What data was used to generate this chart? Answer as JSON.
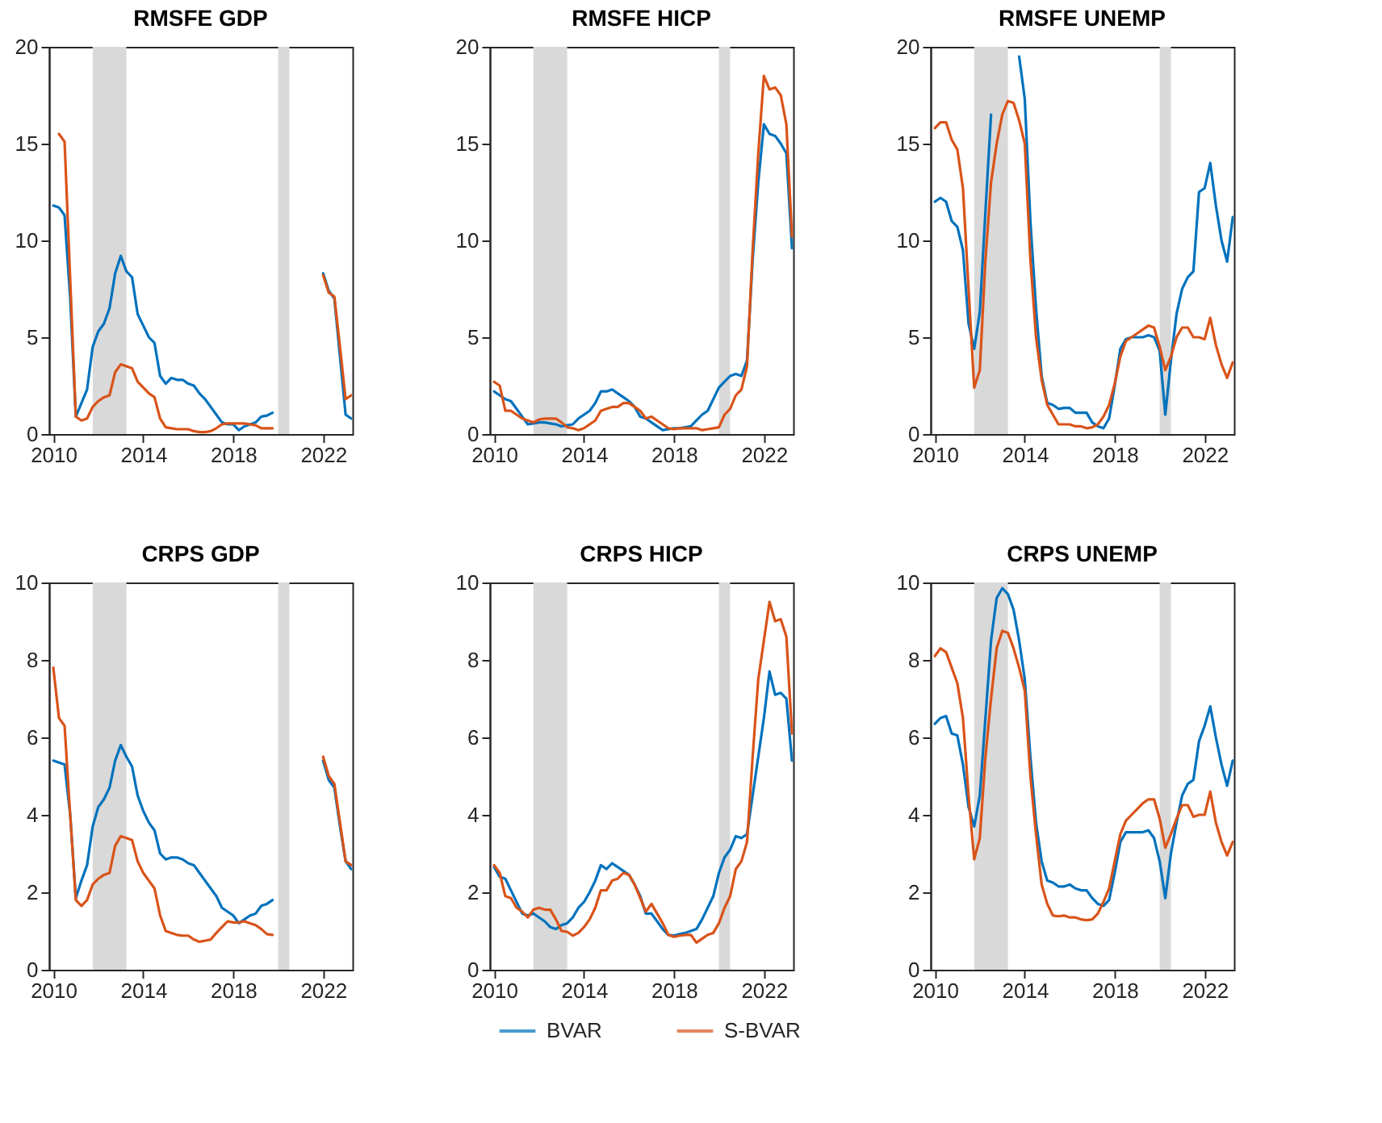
{
  "chart_data": [
    {
      "type": "line",
      "title": "RMSFE GDP",
      "legend": "bottom",
      "xlim": [
        2009.8,
        2023.3
      ],
      "xticks": [
        2010,
        2014,
        2018,
        2022
      ],
      "ylim": [
        0,
        20
      ],
      "yticks": [
        0,
        5,
        10,
        15,
        20
      ],
      "grid": false,
      "line_style": "solid",
      "x": [
        2010,
        2010.25,
        2010.5,
        2010.75,
        2011,
        2011.25,
        2011.5,
        2011.75,
        2012,
        2012.25,
        2012.5,
        2012.75,
        2013,
        2013.25,
        2013.5,
        2013.75,
        2014,
        2014.25,
        2014.5,
        2014.75,
        2015,
        2015.25,
        2015.5,
        2015.75,
        2016,
        2016.25,
        2016.5,
        2016.75,
        2017,
        2017.25,
        2017.5,
        2017.75,
        2018,
        2018.25,
        2018.5,
        2018.75,
        2019,
        2019.25,
        2019.5,
        2019.75,
        2020,
        2020.25,
        2020.5,
        2020.75,
        2021,
        2021.25,
        2021.5,
        2021.75,
        2022,
        2022.25,
        2022.5,
        2022.75,
        2023,
        2023.25
      ],
      "bands": [
        {
          "axis": "x",
          "from": 2011.75,
          "to": 2013.25,
          "color": "#d9d9d9"
        },
        {
          "axis": "x",
          "from": 2020.0,
          "to": 2020.5,
          "color": "#d9d9d9"
        }
      ],
      "series": [
        {
          "name": "BVAR",
          "color": "#0072bd",
          "values": [
            11.8,
            11.7,
            11.3,
            7.0,
            0.9,
            1.6,
            2.3,
            4.5,
            5.3,
            5.7,
            6.5,
            8.3,
            9.2,
            8.4,
            8.1,
            6.2,
            5.6,
            5.0,
            4.7,
            3.0,
            2.6,
            2.9,
            2.8,
            2.8,
            2.6,
            2.5,
            2.1,
            1.8,
            1.4,
            1.0,
            0.6,
            0.5,
            0.5,
            0.2,
            0.4,
            0.5,
            0.6,
            0.9,
            0.95,
            1.1,
            null,
            null,
            null,
            null,
            null,
            null,
            null,
            null,
            8.3,
            7.4,
            7.0,
            4.0,
            1.0,
            0.8
          ]
        },
        {
          "name": "S-BVAR",
          "color": "#d95319",
          "values": [
            null,
            15.5,
            15.1,
            8.0,
            0.9,
            0.7,
            0.8,
            1.4,
            1.7,
            1.9,
            2.0,
            3.2,
            3.6,
            3.5,
            3.4,
            2.7,
            2.4,
            2.1,
            1.9,
            0.8,
            0.35,
            0.3,
            0.25,
            0.25,
            0.25,
            0.15,
            0.1,
            0.1,
            0.15,
            0.3,
            0.5,
            0.55,
            0.55,
            0.55,
            0.55,
            0.5,
            0.45,
            0.3,
            0.3,
            0.3,
            null,
            null,
            null,
            null,
            null,
            null,
            null,
            null,
            8.2,
            7.3,
            7.1,
            4.5,
            1.8,
            2.0
          ]
        }
      ]
    },
    {
      "type": "line",
      "title": "RMSFE HICP",
      "legend": "bottom",
      "xlim": [
        2009.8,
        2023.3
      ],
      "xticks": [
        2010,
        2014,
        2018,
        2022
      ],
      "ylim": [
        0,
        20
      ],
      "yticks": [
        0,
        5,
        10,
        15,
        20
      ],
      "grid": false,
      "line_style": "solid",
      "x": [
        2010,
        2010.25,
        2010.5,
        2010.75,
        2011,
        2011.25,
        2011.5,
        2011.75,
        2012,
        2012.25,
        2012.5,
        2012.75,
        2013,
        2013.25,
        2013.5,
        2013.75,
        2014,
        2014.25,
        2014.5,
        2014.75,
        2015,
        2015.25,
        2015.5,
        2015.75,
        2016,
        2016.25,
        2016.5,
        2016.75,
        2017,
        2017.25,
        2017.5,
        2017.75,
        2018,
        2018.25,
        2018.5,
        2018.75,
        2019,
        2019.25,
        2019.5,
        2019.75,
        2020,
        2020.25,
        2020.5,
        2020.75,
        2021,
        2021.25,
        2021.5,
        2021.75,
        2022,
        2022.25,
        2022.5,
        2022.75,
        2023,
        2023.25
      ],
      "bands": [
        {
          "axis": "x",
          "from": 2011.75,
          "to": 2013.25,
          "color": "#d9d9d9"
        },
        {
          "axis": "x",
          "from": 2020.0,
          "to": 2020.5,
          "color": "#d9d9d9"
        }
      ],
      "series": [
        {
          "name": "BVAR",
          "color": "#0072bd",
          "values": [
            2.2,
            2.0,
            1.8,
            1.7,
            1.3,
            0.9,
            0.5,
            0.55,
            0.6,
            0.6,
            0.55,
            0.5,
            0.4,
            0.45,
            0.5,
            0.8,
            1.0,
            1.2,
            1.6,
            2.2,
            2.2,
            2.3,
            2.1,
            1.9,
            1.7,
            1.4,
            0.9,
            0.8,
            0.6,
            0.4,
            0.2,
            0.25,
            0.3,
            0.3,
            0.35,
            0.4,
            0.7,
            1.0,
            1.2,
            1.8,
            2.4,
            2.7,
            3.0,
            3.1,
            3.0,
            3.8,
            9.0,
            13.0,
            16.0,
            15.5,
            15.4,
            15.0,
            14.5,
            9.6
          ]
        },
        {
          "name": "S-BVAR",
          "color": "#d95319",
          "values": [
            2.7,
            2.5,
            1.2,
            1.2,
            1.0,
            0.8,
            0.7,
            0.6,
            0.75,
            0.8,
            0.8,
            0.8,
            0.6,
            0.35,
            0.3,
            0.2,
            0.3,
            0.5,
            0.7,
            1.2,
            1.3,
            1.4,
            1.4,
            1.6,
            1.6,
            1.4,
            1.2,
            0.8,
            0.9,
            0.7,
            0.5,
            0.3,
            0.25,
            0.3,
            0.3,
            0.3,
            0.3,
            0.2,
            0.25,
            0.3,
            0.35,
            1.0,
            1.3,
            2.0,
            2.3,
            3.5,
            9.5,
            14.5,
            18.5,
            17.8,
            17.9,
            17.5,
            16.0,
            10.2
          ]
        }
      ]
    },
    {
      "type": "line",
      "title": "RMSFE UNEMP",
      "legend": "bottom",
      "xlim": [
        2009.8,
        2023.3
      ],
      "xticks": [
        2010,
        2014,
        2018,
        2022
      ],
      "ylim": [
        0,
        20
      ],
      "yticks": [
        0,
        5,
        10,
        15,
        20
      ],
      "grid": false,
      "line_style": "solid",
      "x": [
        2010,
        2010.25,
        2010.5,
        2010.75,
        2011,
        2011.25,
        2011.5,
        2011.75,
        2012,
        2012.25,
        2012.5,
        2012.75,
        2013,
        2013.25,
        2013.5,
        2013.75,
        2014,
        2014.25,
        2014.5,
        2014.75,
        2015,
        2015.25,
        2015.5,
        2015.75,
        2016,
        2016.25,
        2016.5,
        2016.75,
        2017,
        2017.25,
        2017.5,
        2017.75,
        2018,
        2018.25,
        2018.5,
        2018.75,
        2019,
        2019.25,
        2019.5,
        2019.75,
        2020,
        2020.25,
        2020.5,
        2020.75,
        2021,
        2021.25,
        2021.5,
        2021.75,
        2022,
        2022.25,
        2022.5,
        2022.75,
        2023,
        2023.25
      ],
      "bands": [
        {
          "axis": "x",
          "from": 2011.75,
          "to": 2013.25,
          "color": "#d9d9d9"
        },
        {
          "axis": "x",
          "from": 2020.0,
          "to": 2020.5,
          "color": "#d9d9d9"
        }
      ],
      "series": [
        {
          "name": "BVAR",
          "color": "#0072bd",
          "values": [
            12.0,
            12.2,
            12.0,
            11.0,
            10.7,
            9.5,
            5.7,
            4.4,
            6.3,
            11.5,
            16.5,
            null,
            null,
            null,
            null,
            19.5,
            17.3,
            11.0,
            6.5,
            3.0,
            1.6,
            1.5,
            1.3,
            1.35,
            1.35,
            1.1,
            1.1,
            1.1,
            0.6,
            0.4,
            0.3,
            0.8,
            2.5,
            4.4,
            4.9,
            5.0,
            5.0,
            5.0,
            5.1,
            5.0,
            4.3,
            1.0,
            3.8,
            6.2,
            7.5,
            8.1,
            8.4,
            12.5,
            12.7,
            14.0,
            11.8,
            10.0,
            8.9,
            11.2
          ]
        },
        {
          "name": "S-BVAR",
          "color": "#d95319",
          "values": [
            15.8,
            16.1,
            16.1,
            15.2,
            14.7,
            12.7,
            7.5,
            2.4,
            3.3,
            9.0,
            13.0,
            15.0,
            16.5,
            17.2,
            17.1,
            16.2,
            15.0,
            9.0,
            5.0,
            2.8,
            1.5,
            1.0,
            0.5,
            0.5,
            0.5,
            0.4,
            0.4,
            0.3,
            0.35,
            0.5,
            0.9,
            1.5,
            2.6,
            4.0,
            4.8,
            5.0,
            5.2,
            5.4,
            5.6,
            5.5,
            4.5,
            3.3,
            4.0,
            5.0,
            5.5,
            5.5,
            5.0,
            5.0,
            4.9,
            6.0,
            4.6,
            3.6,
            2.9,
            3.7
          ]
        }
      ]
    },
    {
      "type": "line",
      "title": "CRPS GDP",
      "legend": "bottom",
      "xlim": [
        2009.8,
        2023.3
      ],
      "xticks": [
        2010,
        2014,
        2018,
        2022
      ],
      "ylim": [
        0,
        10
      ],
      "yticks": [
        0,
        2,
        4,
        6,
        8,
        10
      ],
      "grid": false,
      "line_style": "solid",
      "x": [
        2010,
        2010.25,
        2010.5,
        2010.75,
        2011,
        2011.25,
        2011.5,
        2011.75,
        2012,
        2012.25,
        2012.5,
        2012.75,
        2013,
        2013.25,
        2013.5,
        2013.75,
        2014,
        2014.25,
        2014.5,
        2014.75,
        2015,
        2015.25,
        2015.5,
        2015.75,
        2016,
        2016.25,
        2016.5,
        2016.75,
        2017,
        2017.25,
        2017.5,
        2017.75,
        2018,
        2018.25,
        2018.5,
        2018.75,
        2019,
        2019.25,
        2019.5,
        2019.75,
        2020,
        2020.25,
        2020.5,
        2020.75,
        2021,
        2021.25,
        2021.5,
        2021.75,
        2022,
        2022.25,
        2022.5,
        2022.75,
        2023,
        2023.25
      ],
      "bands": [
        {
          "axis": "x",
          "from": 2011.75,
          "to": 2013.25,
          "color": "#d9d9d9"
        },
        {
          "axis": "x",
          "from": 2020.0,
          "to": 2020.5,
          "color": "#d9d9d9"
        }
      ],
      "series": [
        {
          "name": "BVAR",
          "color": "#0072bd",
          "values": [
            5.4,
            5.35,
            5.3,
            4.0,
            1.85,
            2.3,
            2.7,
            3.7,
            4.2,
            4.4,
            4.7,
            5.4,
            5.8,
            5.5,
            5.25,
            4.5,
            4.1,
            3.8,
            3.6,
            3.0,
            2.85,
            2.9,
            2.9,
            2.85,
            2.75,
            2.7,
            2.5,
            2.3,
            2.1,
            1.9,
            1.6,
            1.5,
            1.4,
            1.2,
            1.3,
            1.4,
            1.45,
            1.65,
            1.7,
            1.8,
            null,
            null,
            null,
            null,
            null,
            null,
            null,
            null,
            5.4,
            4.9,
            4.7,
            3.7,
            2.8,
            2.6
          ]
        },
        {
          "name": "S-BVAR",
          "color": "#d95319",
          "values": [
            7.8,
            6.5,
            6.3,
            4.0,
            1.8,
            1.65,
            1.8,
            2.2,
            2.35,
            2.45,
            2.5,
            3.2,
            3.45,
            3.4,
            3.35,
            2.8,
            2.5,
            2.3,
            2.1,
            1.4,
            1.0,
            0.95,
            0.9,
            0.88,
            0.88,
            0.78,
            0.72,
            0.75,
            0.78,
            0.95,
            1.1,
            1.25,
            1.22,
            1.22,
            1.25,
            1.2,
            1.15,
            1.05,
            0.92,
            0.9,
            null,
            null,
            null,
            null,
            null,
            null,
            null,
            null,
            5.5,
            5.0,
            4.8,
            3.8,
            2.8,
            2.7
          ]
        }
      ]
    },
    {
      "type": "line",
      "title": "CRPS HICP",
      "xlim": [
        2009.8,
        2023.3
      ],
      "xticks": [
        2010,
        2014,
        2018,
        2022
      ],
      "ylim": [
        0,
        10
      ],
      "yticks": [
        0,
        2,
        4,
        6,
        8,
        10
      ],
      "grid": false,
      "line_style": "solid",
      "legend": "bottom",
      "x": [
        2010,
        2010.25,
        2010.5,
        2010.75,
        2011,
        2011.25,
        2011.5,
        2011.75,
        2012,
        2012.25,
        2012.5,
        2012.75,
        2013,
        2013.25,
        2013.5,
        2013.75,
        2014,
        2014.25,
        2014.5,
        2014.75,
        2015,
        2015.25,
        2015.5,
        2015.75,
        2016,
        2016.25,
        2016.5,
        2016.75,
        2017,
        2017.25,
        2017.5,
        2017.75,
        2018,
        2018.25,
        2018.5,
        2018.75,
        2019,
        2019.25,
        2019.5,
        2019.75,
        2020,
        2020.25,
        2020.5,
        2020.75,
        2021,
        2021.25,
        2021.5,
        2021.75,
        2022,
        2022.25,
        2022.5,
        2022.75,
        2023,
        2023.25
      ],
      "bands": [
        {
          "axis": "x",
          "from": 2011.75,
          "to": 2013.25,
          "color": "#d9d9d9"
        },
        {
          "axis": "x",
          "from": 2020.0,
          "to": 2020.5,
          "color": "#d9d9d9"
        }
      ],
      "series": [
        {
          "name": "BVAR",
          "color": "#0072bd",
          "values": [
            2.65,
            2.4,
            2.35,
            2.05,
            1.75,
            1.45,
            1.4,
            1.45,
            1.35,
            1.25,
            1.1,
            1.05,
            1.15,
            1.2,
            1.35,
            1.6,
            1.75,
            2.0,
            2.3,
            2.7,
            2.6,
            2.75,
            2.65,
            2.55,
            2.45,
            2.2,
            1.9,
            1.45,
            1.45,
            1.25,
            1.05,
            0.9,
            0.88,
            0.92,
            0.95,
            1.0,
            1.05,
            1.3,
            1.6,
            1.9,
            2.5,
            2.9,
            3.1,
            3.45,
            3.4,
            3.5,
            4.5,
            5.5,
            6.5,
            7.7,
            7.1,
            7.15,
            7.0,
            5.4
          ]
        },
        {
          "name": "S-BVAR",
          "color": "#d95319",
          "values": [
            2.7,
            2.5,
            1.9,
            1.85,
            1.6,
            1.5,
            1.35,
            1.55,
            1.6,
            1.55,
            1.55,
            1.3,
            1.0,
            0.98,
            0.88,
            0.95,
            1.1,
            1.3,
            1.6,
            2.05,
            2.05,
            2.3,
            2.35,
            2.5,
            2.45,
            2.2,
            1.85,
            1.5,
            1.7,
            1.45,
            1.2,
            0.9,
            0.85,
            0.88,
            0.9,
            0.9,
            0.7,
            0.8,
            0.9,
            0.95,
            1.2,
            1.6,
            1.9,
            2.6,
            2.8,
            3.3,
            5.5,
            7.5,
            8.5,
            9.5,
            9.0,
            9.05,
            8.6,
            6.1
          ]
        }
      ]
    },
    {
      "type": "line",
      "title": "CRPS UNEMP",
      "legend": "bottom",
      "xlim": [
        2009.8,
        2023.3
      ],
      "xticks": [
        2010,
        2014,
        2018,
        2022
      ],
      "ylim": [
        0,
        10
      ],
      "yticks": [
        0,
        2,
        4,
        6,
        8,
        10
      ],
      "grid": false,
      "line_style": "solid",
      "x": [
        2010,
        2010.25,
        2010.5,
        2010.75,
        2011,
        2011.25,
        2011.5,
        2011.75,
        2012,
        2012.25,
        2012.5,
        2012.75,
        2013,
        2013.25,
        2013.5,
        2013.75,
        2014,
        2014.25,
        2014.5,
        2014.75,
        2015,
        2015.25,
        2015.5,
        2015.75,
        2016,
        2016.25,
        2016.5,
        2016.75,
        2017,
        2017.25,
        2017.5,
        2017.75,
        2018,
        2018.25,
        2018.5,
        2018.75,
        2019,
        2019.25,
        2019.5,
        2019.75,
        2020,
        2020.25,
        2020.5,
        2020.75,
        2021,
        2021.25,
        2021.5,
        2021.75,
        2022,
        2022.25,
        2022.5,
        2022.75,
        2023,
        2023.25
      ],
      "bands": [
        {
          "axis": "x",
          "from": 2011.75,
          "to": 2013.25,
          "color": "#d9d9d9"
        },
        {
          "axis": "x",
          "from": 2020.0,
          "to": 2020.5,
          "color": "#d9d9d9"
        }
      ],
      "series": [
        {
          "name": "BVAR",
          "color": "#0072bd",
          "values": [
            6.35,
            6.5,
            6.55,
            6.1,
            6.05,
            5.3,
            4.2,
            3.7,
            4.5,
            6.5,
            8.5,
            9.6,
            9.85,
            9.7,
            9.3,
            8.5,
            7.5,
            5.5,
            3.8,
            2.8,
            2.3,
            2.25,
            2.15,
            2.15,
            2.2,
            2.1,
            2.05,
            2.05,
            1.85,
            1.7,
            1.65,
            1.8,
            2.5,
            3.3,
            3.55,
            3.55,
            3.55,
            3.55,
            3.6,
            3.4,
            2.8,
            1.85,
            3.0,
            3.8,
            4.5,
            4.8,
            4.9,
            5.9,
            6.3,
            6.8,
            6.0,
            5.3,
            4.75,
            5.4
          ]
        },
        {
          "name": "S-BVAR",
          "color": "#d95319",
          "values": [
            8.1,
            8.3,
            8.2,
            7.8,
            7.4,
            6.5,
            4.5,
            2.85,
            3.4,
            5.5,
            7.0,
            8.3,
            8.75,
            8.7,
            8.3,
            7.8,
            7.2,
            5.0,
            3.5,
            2.2,
            1.7,
            1.4,
            1.38,
            1.4,
            1.35,
            1.35,
            1.3,
            1.28,
            1.3,
            1.45,
            1.75,
            2.1,
            2.8,
            3.5,
            3.85,
            4.0,
            4.15,
            4.3,
            4.4,
            4.4,
            3.9,
            3.15,
            3.5,
            3.9,
            4.25,
            4.25,
            3.95,
            4.0,
            4.0,
            4.6,
            3.8,
            3.3,
            2.95,
            3.3
          ]
        }
      ]
    }
  ]
}
